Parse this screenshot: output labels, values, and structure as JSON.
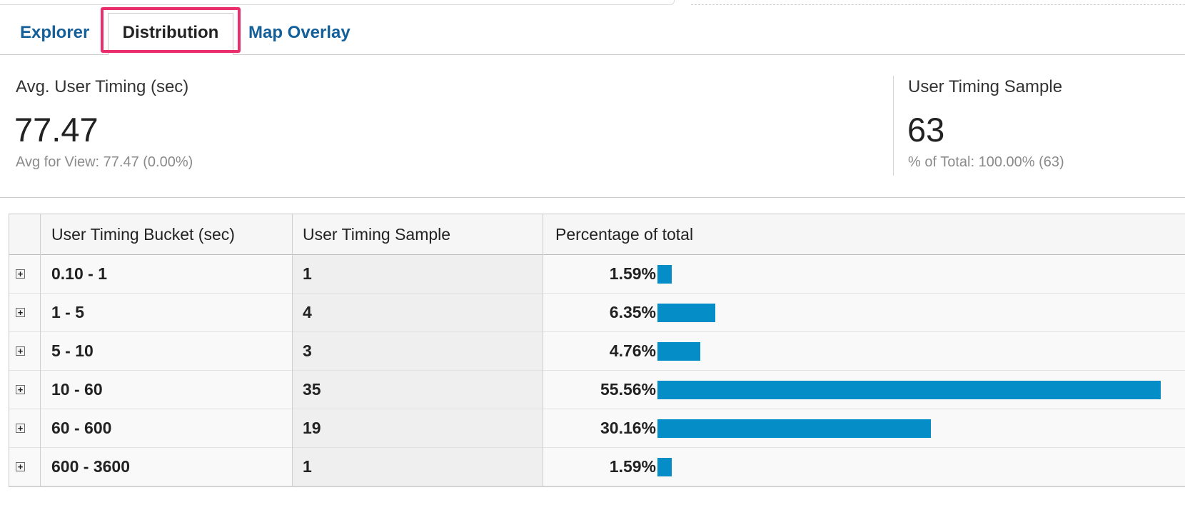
{
  "tabs": {
    "explorer": "Explorer",
    "distribution": "Distribution",
    "map_overlay": "Map Overlay"
  },
  "metrics": {
    "left": {
      "label": "Avg. User Timing (sec)",
      "value": "77.47",
      "sub_label": "Avg for View: ",
      "sub_value": "77.47 (0.00%)"
    },
    "right": {
      "label": "User Timing Sample",
      "value": "63",
      "sub_label": "% of Total: ",
      "sub_value": "100.00% (63)"
    }
  },
  "table": {
    "headers": [
      "User Timing Bucket (sec)",
      "User Timing Sample",
      "Percentage of total"
    ],
    "rows": [
      {
        "bucket": "0.10 - 1",
        "sample": "1",
        "pct": "1.59%",
        "pct_value": 1.59
      },
      {
        "bucket": "1 - 5",
        "sample": "4",
        "pct": "6.35%",
        "pct_value": 6.35
      },
      {
        "bucket": "5 - 10",
        "sample": "3",
        "pct": "4.76%",
        "pct_value": 4.76
      },
      {
        "bucket": "10 - 60",
        "sample": "35",
        "pct": "55.56%",
        "pct_value": 55.56
      },
      {
        "bucket": "60 - 600",
        "sample": "19",
        "pct": "30.16%",
        "pct_value": 30.16
      },
      {
        "bucket": "600 - 3600",
        "sample": "1",
        "pct": "1.59%",
        "pct_value": 1.59
      }
    ],
    "expand_glyph": "+"
  },
  "colors": {
    "bar": "#058dc7",
    "tab_link": "#135f9a",
    "highlight": "#ea2e6c"
  }
}
